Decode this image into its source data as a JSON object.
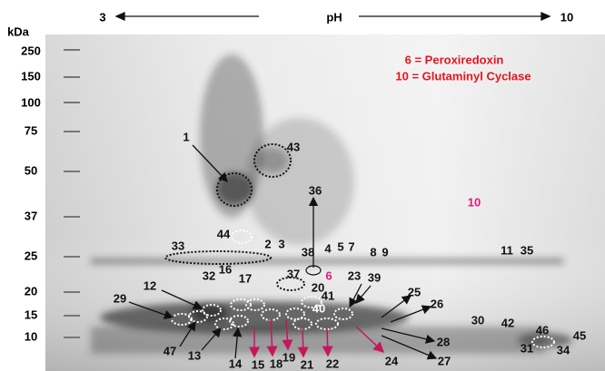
{
  "header": {
    "left": "3",
    "center": "pH",
    "right": "10"
  },
  "axis": {
    "unit": "kDa",
    "labels": [
      "250",
      "150",
      "100",
      "75",
      "50",
      "37",
      "25",
      "20",
      "15",
      "10"
    ]
  },
  "legend": [
    "6 = Peroxiredoxin",
    "10 = Glutaminyl Cyclase"
  ],
  "spots": [
    "1",
    "43",
    "36",
    "10",
    "44",
    "2",
    "3",
    "11",
    "35",
    "33",
    "38",
    "4",
    "5",
    "7",
    "8",
    "9",
    "6",
    "37",
    "32",
    "16",
    "17",
    "23",
    "39",
    "12",
    "20",
    "41",
    "29",
    "25",
    "26",
    "40",
    "30",
    "42",
    "46",
    "45",
    "47",
    "13",
    "14",
    "15",
    "18",
    "19",
    "21",
    "22",
    "24",
    "27",
    "28",
    "31",
    "34"
  ]
}
